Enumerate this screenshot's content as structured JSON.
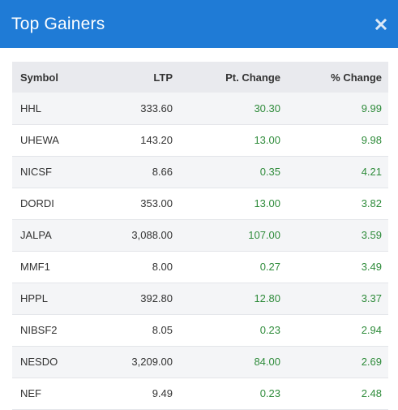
{
  "modal": {
    "title": "Top Gainers",
    "close_icon": "close-icon"
  },
  "colors": {
    "header_bg": "#1f7bd6",
    "positive": "#2e8b3a",
    "table_header_bg": "#e9eaee",
    "row_alt_bg": "#f4f5f7"
  },
  "table": {
    "headers": {
      "symbol": "Symbol",
      "ltp": "LTP",
      "pt_change": "Pt. Change",
      "pct_change": "% Change"
    },
    "rows": [
      {
        "symbol": "HHL",
        "ltp": "333.60",
        "pt_change": "30.30",
        "pct_change": "9.99"
      },
      {
        "symbol": "UHEWA",
        "ltp": "143.20",
        "pt_change": "13.00",
        "pct_change": "9.98"
      },
      {
        "symbol": "NICSF",
        "ltp": "8.66",
        "pt_change": "0.35",
        "pct_change": "4.21"
      },
      {
        "symbol": "DORDI",
        "ltp": "353.00",
        "pt_change": "13.00",
        "pct_change": "3.82"
      },
      {
        "symbol": "JALPA",
        "ltp": "3,088.00",
        "pt_change": "107.00",
        "pct_change": "3.59"
      },
      {
        "symbol": "MMF1",
        "ltp": "8.00",
        "pt_change": "0.27",
        "pct_change": "3.49"
      },
      {
        "symbol": "HPPL",
        "ltp": "392.80",
        "pt_change": "12.80",
        "pct_change": "3.37"
      },
      {
        "symbol": "NIBSF2",
        "ltp": "8.05",
        "pt_change": "0.23",
        "pct_change": "2.94"
      },
      {
        "symbol": "NESDO",
        "ltp": "3,209.00",
        "pt_change": "84.00",
        "pct_change": "2.69"
      },
      {
        "symbol": "NEF",
        "ltp": "9.49",
        "pt_change": "0.23",
        "pct_change": "2.48"
      }
    ]
  }
}
